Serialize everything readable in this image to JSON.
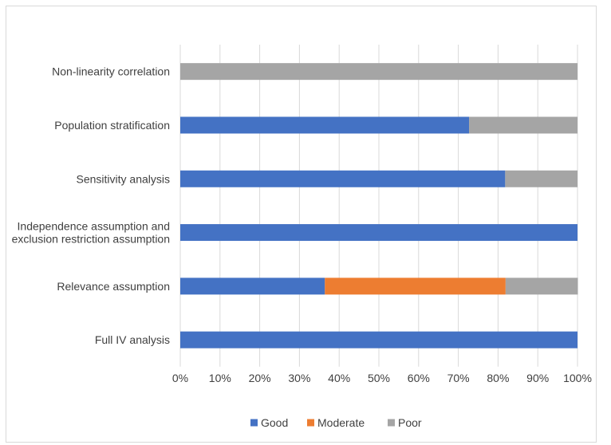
{
  "chart_data": {
    "type": "bar",
    "orientation": "horizontal",
    "stacked": "percent",
    "title": "",
    "xlabel": "",
    "ylabel": "",
    "xlim": [
      0,
      100
    ],
    "grid": true,
    "legend_position": "bottom",
    "categories": [
      [
        "Non-linearity correlation"
      ],
      [
        "Population stratification"
      ],
      [
        "Sensitivity analysis"
      ],
      [
        "Independence assumption and",
        "exclusion restriction assumption"
      ],
      [
        "Relevance assumption"
      ],
      [
        "Full IV analysis"
      ]
    ],
    "x_ticks": [
      "0%",
      "10%",
      "20%",
      "30%",
      "40%",
      "50%",
      "60%",
      "70%",
      "80%",
      "90%",
      "100%"
    ],
    "series": [
      {
        "name": "Good",
        "color": "#4472C4",
        "values": [
          0,
          72.7,
          81.8,
          100,
          36.4,
          100
        ]
      },
      {
        "name": "Moderate",
        "color": "#ED7D31",
        "values": [
          0,
          0,
          0,
          0,
          45.5,
          0
        ]
      },
      {
        "name": "Poor",
        "color": "#A5A5A5",
        "values": [
          100,
          27.3,
          18.2,
          0,
          18.2,
          0
        ]
      }
    ]
  }
}
